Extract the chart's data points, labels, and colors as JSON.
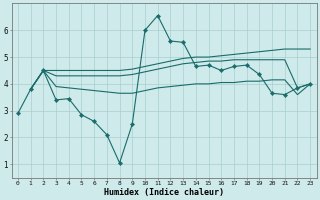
{
  "xlabel": "Humidex (Indice chaleur)",
  "bg_color": "#ceeaea",
  "grid_color": "#aacece",
  "line_color": "#1a6b6b",
  "xlim": [
    -0.5,
    23.5
  ],
  "ylim": [
    0.5,
    7.0
  ],
  "yticks": [
    1,
    2,
    3,
    4,
    5,
    6
  ],
  "xticks": [
    0,
    1,
    2,
    3,
    4,
    5,
    6,
    7,
    8,
    9,
    10,
    11,
    12,
    13,
    14,
    15,
    16,
    17,
    18,
    19,
    20,
    21,
    22,
    23
  ],
  "line1_x": [
    0,
    1,
    2,
    3,
    4,
    5,
    6,
    7,
    8,
    9,
    10,
    11,
    12,
    13,
    14,
    15,
    16,
    17,
    18,
    19,
    20,
    21,
    22,
    23
  ],
  "line1_y": [
    2.9,
    3.8,
    4.5,
    3.4,
    3.45,
    2.85,
    2.6,
    2.1,
    1.05,
    2.5,
    6.0,
    6.55,
    5.6,
    5.55,
    4.65,
    4.7,
    4.5,
    4.65,
    4.7,
    4.35,
    3.65,
    3.6,
    3.85,
    4.0
  ],
  "line2_x": [
    1,
    2,
    3,
    4,
    5,
    6,
    7,
    8,
    9,
    10,
    11,
    12,
    13,
    14,
    15,
    16,
    17,
    18,
    19,
    20,
    21,
    22,
    23
  ],
  "line2_y": [
    3.8,
    4.5,
    4.5,
    4.5,
    4.5,
    4.5,
    4.5,
    4.5,
    4.55,
    4.65,
    4.75,
    4.85,
    4.95,
    5.0,
    5.0,
    5.05,
    5.1,
    5.15,
    5.2,
    5.25,
    5.3,
    5.3,
    5.3
  ],
  "line3_x": [
    1,
    2,
    3,
    4,
    5,
    6,
    7,
    8,
    9,
    10,
    11,
    12,
    13,
    14,
    15,
    16,
    17,
    18,
    19,
    20,
    21,
    22,
    23
  ],
  "line3_y": [
    3.8,
    4.5,
    4.3,
    4.3,
    4.3,
    4.3,
    4.3,
    4.3,
    4.35,
    4.45,
    4.55,
    4.65,
    4.75,
    4.8,
    4.85,
    4.85,
    4.9,
    4.9,
    4.9,
    4.9,
    4.9,
    3.85,
    4.0
  ],
  "line4_x": [
    1,
    2,
    3,
    4,
    5,
    6,
    7,
    8,
    9,
    10,
    11,
    12,
    13,
    14,
    15,
    16,
    17,
    18,
    19,
    20,
    21,
    22,
    23
  ],
  "line4_y": [
    3.8,
    4.5,
    3.9,
    3.85,
    3.8,
    3.75,
    3.7,
    3.65,
    3.65,
    3.75,
    3.85,
    3.9,
    3.95,
    4.0,
    4.0,
    4.05,
    4.05,
    4.1,
    4.1,
    4.15,
    4.15,
    3.6,
    4.0
  ]
}
